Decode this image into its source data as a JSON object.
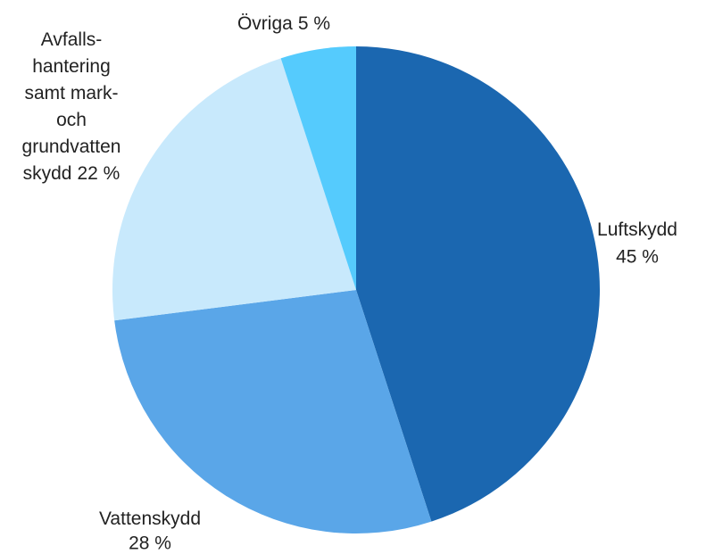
{
  "chart_data": {
    "type": "pie",
    "categories": [
      [
        "Luftskydd"
      ],
      [
        "Vattenskydd"
      ],
      [
        "Avfalls-",
        "hantering",
        "samt mark-",
        "och",
        "grundvatten",
        "skydd"
      ],
      [
        "Övriga"
      ]
    ],
    "values": [
      45,
      28,
      22,
      5
    ],
    "value_labels": [
      "45 %",
      "28 %",
      "22 %",
      "5 %"
    ],
    "colors": [
      "#1b67b0",
      "#5aa6e8",
      "#c8e9fc",
      "#55cbfd"
    ]
  }
}
